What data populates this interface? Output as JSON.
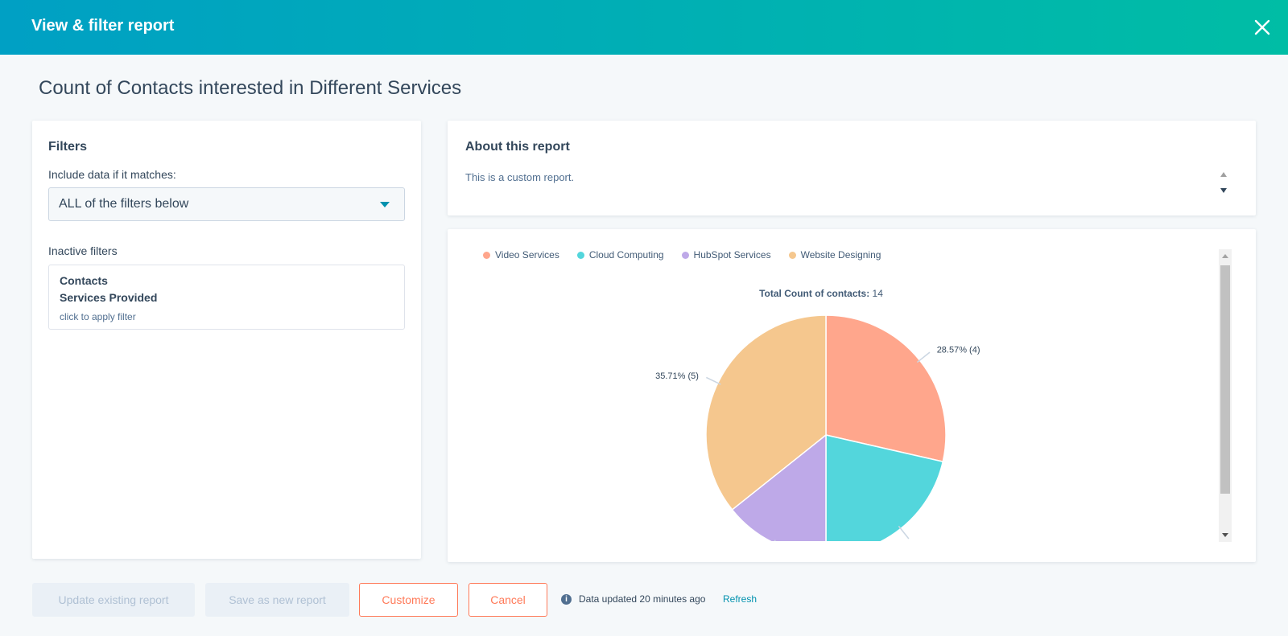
{
  "modal": {
    "title": "View & filter report"
  },
  "report": {
    "title": "Count of Contacts interested in Different Services"
  },
  "filters": {
    "title": "Filters",
    "include_label": "Include data if it matches:",
    "match_value": "ALL of the filters below",
    "inactive_label": "Inactive filters",
    "inactive_items": [
      {
        "object": "Contacts",
        "property": "Services Provided",
        "hint": "click to apply filter"
      }
    ]
  },
  "about": {
    "title": "About this report",
    "text": "This is a custom report."
  },
  "chart_data": {
    "type": "pie",
    "total_label": "Total Count of contacts:",
    "total_value": "14",
    "legend_position": "top-left",
    "slices": [
      {
        "name": "Video Services",
        "value": 4,
        "percent": 28.57,
        "label": "28.57% (4)",
        "color": "#ffa68c"
      },
      {
        "name": "Cloud Computing",
        "value": 3,
        "percent": 21.43,
        "label": "",
        "color": "#53d6dc"
      },
      {
        "name": "HubSpot Services",
        "value": 2,
        "percent": 14.29,
        "label": "",
        "color": "#bea9e8"
      },
      {
        "name": "Website Designing",
        "value": 5,
        "percent": 35.71,
        "label": "35.71% (5)",
        "color": "#f5c78e"
      }
    ]
  },
  "footer": {
    "update_label": "Update existing report",
    "save_label": "Save as new report",
    "customize_label": "Customize",
    "cancel_label": "Cancel",
    "status_text": "Data updated 20 minutes ago",
    "refresh_label": "Refresh"
  },
  "colors": {
    "accent": "#ff7a59",
    "link": "#0091ae",
    "header_start": "#00a0c4",
    "header_end": "#00bda5"
  }
}
